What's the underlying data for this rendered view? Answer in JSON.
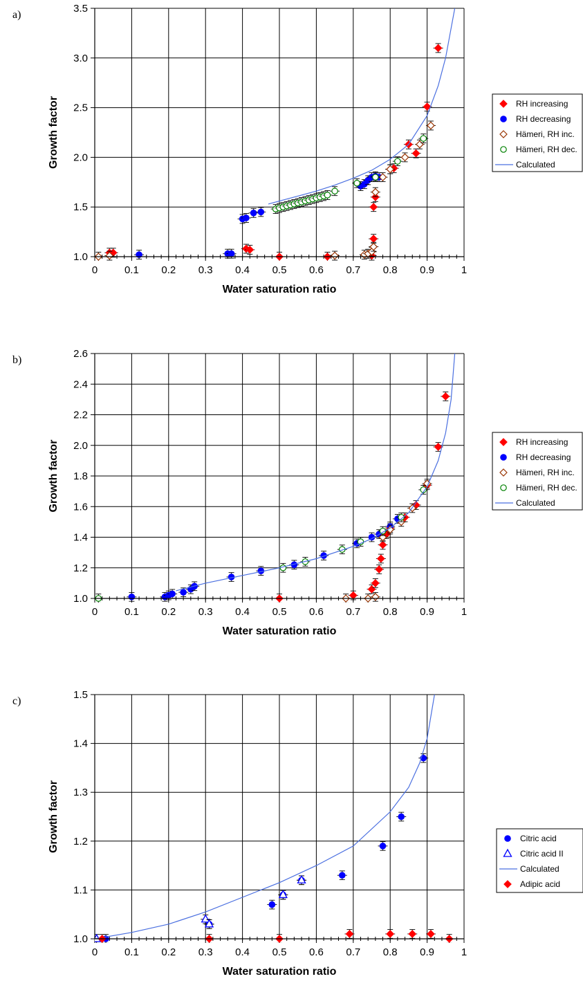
{
  "chart_data": [
    {
      "type": "scatter",
      "panel_label": "a)",
      "xlabel": "Water saturation ratio",
      "ylabel": "Growth factor",
      "xlim": [
        0,
        1
      ],
      "ylim": [
        1.0,
        3.5
      ],
      "x_ticks": [
        "0",
        "0.1",
        "0.2",
        "0.3",
        "0.4",
        "0.5",
        "0.6",
        "0.7",
        "0.8",
        "0.9",
        "1"
      ],
      "y_ticks": [
        "1.0",
        "1.5",
        "2.0",
        "2.5",
        "3.0",
        "3.5"
      ],
      "grid": true,
      "legend_position": "right",
      "series": [
        {
          "name": "RH increasing",
          "marker": "diamond",
          "color": "#ff0000",
          "filled": true,
          "points": [
            [
              0.04,
              1.04
            ],
            [
              0.05,
              1.04
            ],
            [
              0.41,
              1.08
            ],
            [
              0.42,
              1.07
            ],
            [
              0.5,
              1.0
            ],
            [
              0.63,
              1.0
            ],
            [
              0.75,
              1.01
            ],
            [
              0.75,
              1.05
            ],
            [
              0.755,
              1.18
            ],
            [
              0.755,
              1.5
            ],
            [
              0.76,
              1.6
            ],
            [
              0.8,
              1.88
            ],
            [
              0.81,
              1.89
            ],
            [
              0.85,
              2.13
            ],
            [
              0.87,
              2.04
            ],
            [
              0.9,
              2.51
            ],
            [
              0.93,
              3.1
            ]
          ]
        },
        {
          "name": "RH decreasing",
          "marker": "circle",
          "color": "#0000ff",
          "filled": true,
          "points": [
            [
              0.12,
              1.02
            ],
            [
              0.36,
              1.03
            ],
            [
              0.37,
              1.03
            ],
            [
              0.4,
              1.38
            ],
            [
              0.41,
              1.39
            ],
            [
              0.43,
              1.44
            ],
            [
              0.45,
              1.45
            ],
            [
              0.72,
              1.71
            ],
            [
              0.73,
              1.73
            ],
            [
              0.74,
              1.77
            ],
            [
              0.75,
              1.8
            ],
            [
              0.76,
              1.81
            ],
            [
              0.77,
              1.8
            ]
          ]
        },
        {
          "name": "Hämeri, RH inc.",
          "marker": "diamond",
          "color": "#993300",
          "filled": false,
          "points": [
            [
              0.01,
              1.0
            ],
            [
              0.04,
              1.01
            ],
            [
              0.65,
              1.01
            ],
            [
              0.73,
              1.02
            ],
            [
              0.74,
              1.03
            ],
            [
              0.75,
              1.05
            ],
            [
              0.755,
              1.1
            ],
            [
              0.76,
              1.65
            ],
            [
              0.78,
              1.8
            ],
            [
              0.8,
              1.88
            ],
            [
              0.84,
              2.0
            ],
            [
              0.88,
              2.13
            ],
            [
              0.91,
              2.32
            ]
          ]
        },
        {
          "name": "Hämeri, RH dec.",
          "marker": "circle",
          "color": "#008000",
          "filled": false,
          "points": [
            [
              0.49,
              1.48
            ],
            [
              0.5,
              1.49
            ],
            [
              0.51,
              1.5
            ],
            [
              0.52,
              1.51
            ],
            [
              0.53,
              1.52
            ],
            [
              0.54,
              1.53
            ],
            [
              0.55,
              1.54
            ],
            [
              0.56,
              1.55
            ],
            [
              0.57,
              1.56
            ],
            [
              0.58,
              1.57
            ],
            [
              0.59,
              1.58
            ],
            [
              0.6,
              1.59
            ],
            [
              0.61,
              1.6
            ],
            [
              0.62,
              1.61
            ],
            [
              0.63,
              1.62
            ],
            [
              0.65,
              1.66
            ],
            [
              0.71,
              1.74
            ],
            [
              0.76,
              1.8
            ],
            [
              0.82,
              1.96
            ],
            [
              0.89,
              2.19
            ]
          ]
        },
        {
          "name": "Calculated",
          "marker": "line",
          "color": "#4a6fe0",
          "points": [
            [
              0.47,
              1.53
            ],
            [
              0.5,
              1.56
            ],
            [
              0.55,
              1.61
            ],
            [
              0.6,
              1.66
            ],
            [
              0.65,
              1.72
            ],
            [
              0.7,
              1.79
            ],
            [
              0.75,
              1.87
            ],
            [
              0.8,
              1.98
            ],
            [
              0.85,
              2.13
            ],
            [
              0.9,
              2.42
            ],
            [
              0.93,
              2.72
            ],
            [
              0.95,
              3.0
            ],
            [
              0.965,
              3.3
            ],
            [
              0.975,
              3.5
            ]
          ]
        }
      ]
    },
    {
      "type": "scatter",
      "panel_label": "b)",
      "xlabel": "Water saturation ratio",
      "ylabel": "Growth factor",
      "xlim": [
        0,
        1
      ],
      "ylim": [
        1.0,
        2.6
      ],
      "x_ticks": [
        "0",
        "0.1",
        "0.2",
        "0.3",
        "0.4",
        "0.5",
        "0.6",
        "0.7",
        "0.8",
        "0.9",
        "1"
      ],
      "y_ticks": [
        "1.0",
        "1.2",
        "1.4",
        "1.6",
        "1.8",
        "2.0",
        "2.2",
        "2.4",
        "2.6"
      ],
      "grid": true,
      "legend_position": "right",
      "series": [
        {
          "name": "RH increasing",
          "marker": "diamond",
          "color": "#ff0000",
          "filled": true,
          "points": [
            [
              0.5,
              1.0
            ],
            [
              0.7,
              1.02
            ],
            [
              0.75,
              1.06
            ],
            [
              0.76,
              1.1
            ],
            [
              0.77,
              1.19
            ],
            [
              0.775,
              1.26
            ],
            [
              0.78,
              1.35
            ],
            [
              0.79,
              1.42
            ],
            [
              0.8,
              1.46
            ],
            [
              0.84,
              1.53
            ],
            [
              0.87,
              1.61
            ],
            [
              0.9,
              1.74
            ],
            [
              0.93,
              1.99
            ],
            [
              0.95,
              2.32
            ]
          ]
        },
        {
          "name": "RH decreasing",
          "marker": "circle",
          "color": "#0000ff",
          "filled": true,
          "points": [
            [
              0.1,
              1.01
            ],
            [
              0.19,
              1.01
            ],
            [
              0.2,
              1.02
            ],
            [
              0.21,
              1.03
            ],
            [
              0.24,
              1.04
            ],
            [
              0.26,
              1.06
            ],
            [
              0.27,
              1.08
            ],
            [
              0.37,
              1.14
            ],
            [
              0.45,
              1.18
            ],
            [
              0.54,
              1.22
            ],
            [
              0.62,
              1.28
            ],
            [
              0.71,
              1.36
            ],
            [
              0.75,
              1.4
            ],
            [
              0.77,
              1.42
            ],
            [
              0.8,
              1.47
            ],
            [
              0.82,
              1.52
            ]
          ]
        },
        {
          "name": "Hämeri, RH inc.",
          "marker": "diamond",
          "color": "#993300",
          "filled": false,
          "points": [
            [
              0.68,
              1.0
            ],
            [
              0.74,
              1.0
            ],
            [
              0.76,
              1.01
            ],
            [
              0.78,
              1.4
            ],
            [
              0.8,
              1.45
            ],
            [
              0.83,
              1.5
            ],
            [
              0.86,
              1.59
            ],
            [
              0.9,
              1.75
            ]
          ]
        },
        {
          "name": "Hämeri, RH dec.",
          "marker": "circle",
          "color": "#008000",
          "filled": false,
          "points": [
            [
              0.01,
              1.0
            ],
            [
              0.51,
              1.2
            ],
            [
              0.57,
              1.24
            ],
            [
              0.67,
              1.32
            ],
            [
              0.72,
              1.37
            ],
            [
              0.78,
              1.44
            ],
            [
              0.83,
              1.53
            ],
            [
              0.89,
              1.71
            ]
          ]
        },
        {
          "name": "Calculated",
          "marker": "line",
          "color": "#4a6fe0",
          "points": [
            [
              0.22,
              1.05
            ],
            [
              0.3,
              1.1
            ],
            [
              0.4,
              1.15
            ],
            [
              0.5,
              1.2
            ],
            [
              0.6,
              1.26
            ],
            [
              0.7,
              1.34
            ],
            [
              0.75,
              1.39
            ],
            [
              0.8,
              1.46
            ],
            [
              0.85,
              1.56
            ],
            [
              0.9,
              1.73
            ],
            [
              0.93,
              1.9
            ],
            [
              0.95,
              2.08
            ],
            [
              0.965,
              2.3
            ],
            [
              0.975,
              2.6
            ]
          ]
        }
      ]
    },
    {
      "type": "scatter",
      "panel_label": "c)",
      "xlabel": "Water saturation ratio",
      "ylabel": "Growth factor",
      "xlim": [
        0,
        1
      ],
      "ylim": [
        1.0,
        1.5
      ],
      "x_ticks": [
        "0",
        "0.1",
        "0.2",
        "0.3",
        "0.4",
        "0.5",
        "0.6",
        "0.7",
        "0.8",
        "0.9",
        "1"
      ],
      "y_ticks": [
        "1.0",
        "1.1",
        "1.2",
        "1.3",
        "1.4",
        "1.5"
      ],
      "grid": true,
      "legend_position": "right",
      "series": [
        {
          "name": "Citric acid",
          "marker": "circle",
          "color": "#0000ff",
          "filled": true,
          "points": [
            [
              0.03,
              1.0
            ],
            [
              0.31,
              1.03
            ],
            [
              0.48,
              1.07
            ],
            [
              0.51,
              1.09
            ],
            [
              0.56,
              1.12
            ],
            [
              0.67,
              1.13
            ],
            [
              0.78,
              1.19
            ],
            [
              0.83,
              1.25
            ],
            [
              0.89,
              1.37
            ]
          ]
        },
        {
          "name": "Citric acid II",
          "marker": "triangle",
          "color": "#0000ff",
          "filled": false,
          "points": [
            [
              0.005,
              1.0
            ],
            [
              0.3,
              1.04
            ],
            [
              0.31,
              1.03
            ],
            [
              0.51,
              1.09
            ],
            [
              0.56,
              1.12
            ]
          ]
        },
        {
          "name": "Calculated",
          "marker": "line",
          "color": "#4a6fe0",
          "points": [
            [
              0.0,
              1.0
            ],
            [
              0.1,
              1.013
            ],
            [
              0.2,
              1.03
            ],
            [
              0.3,
              1.055
            ],
            [
              0.4,
              1.085
            ],
            [
              0.5,
              1.115
            ],
            [
              0.6,
              1.15
            ],
            [
              0.7,
              1.19
            ],
            [
              0.8,
              1.26
            ],
            [
              0.85,
              1.31
            ],
            [
              0.88,
              1.36
            ],
            [
              0.9,
              1.41
            ],
            [
              0.92,
              1.5
            ]
          ]
        },
        {
          "name": "Adipic acid",
          "marker": "diamond",
          "color": "#ff0000",
          "filled": true,
          "points": [
            [
              0.02,
              1.0
            ],
            [
              0.31,
              1.0
            ],
            [
              0.5,
              1.0
            ],
            [
              0.69,
              1.01
            ],
            [
              0.8,
              1.01
            ],
            [
              0.86,
              1.01
            ],
            [
              0.91,
              1.01
            ],
            [
              0.96,
              1.0
            ]
          ]
        }
      ]
    }
  ]
}
